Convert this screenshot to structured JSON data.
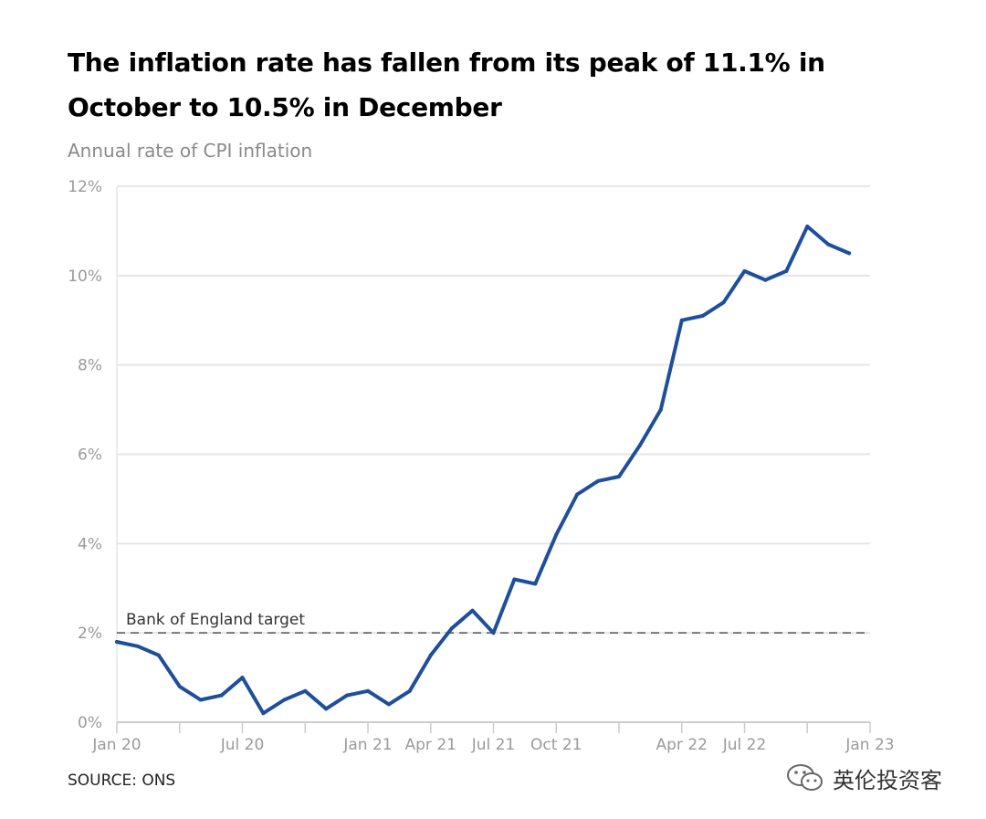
{
  "chart_data": {
    "type": "line",
    "title": "The inflation rate has fallen from its peak of 11.1% in October to 10.5% in December",
    "subtitle": "Annual rate of CPI inflation",
    "source": "SOURCE: ONS",
    "xlabel": "",
    "ylabel": "",
    "ylim": [
      0,
      12
    ],
    "y_ticks": [
      0,
      2,
      4,
      6,
      8,
      10,
      12
    ],
    "y_tick_labels": [
      "0%",
      "2%",
      "4%",
      "6%",
      "8%",
      "10%",
      "12%"
    ],
    "x_tick_dates": [
      "2020-01",
      "2020-04",
      "2020-07",
      "2020-10",
      "2021-01",
      "2021-04",
      "2021-07",
      "2021-10",
      "2022-01",
      "2022-04",
      "2022-07",
      "2022-10",
      "2023-01"
    ],
    "x_tick_labels": [
      "Jan 20",
      "",
      "Jul 20",
      "",
      "Jan 21",
      "Apr 21",
      "Jul 21",
      "Oct 21",
      "",
      "Apr 22",
      "Jul 22",
      "",
      "Jan 23"
    ],
    "grid": true,
    "series": [
      {
        "color": "#1f4f9a",
        "x": [
          "2020-01",
          "2020-02",
          "2020-03",
          "2020-04",
          "2020-05",
          "2020-06",
          "2020-07",
          "2020-08",
          "2020-09",
          "2020-10",
          "2020-11",
          "2020-12",
          "2021-01",
          "2021-02",
          "2021-03",
          "2021-04",
          "2021-05",
          "2021-06",
          "2021-07",
          "2021-08",
          "2021-09",
          "2021-10",
          "2021-11",
          "2021-12",
          "2022-01",
          "2022-02",
          "2022-03",
          "2022-04",
          "2022-05",
          "2022-06",
          "2022-07",
          "2022-08",
          "2022-09",
          "2022-10",
          "2022-11",
          "2022-12"
        ],
        "values": [
          1.8,
          1.7,
          1.5,
          0.8,
          0.5,
          0.6,
          1.0,
          0.2,
          0.5,
          0.7,
          0.3,
          0.6,
          0.7,
          0.4,
          0.7,
          1.5,
          2.1,
          2.5,
          2.0,
          3.2,
          3.1,
          4.2,
          5.1,
          5.4,
          5.5,
          6.2,
          7.0,
          9.0,
          9.1,
          9.4,
          10.1,
          9.9,
          10.1,
          11.1,
          10.7,
          10.5
        ]
      }
    ],
    "reference_line": {
      "value": 2,
      "label": "Bank of England target",
      "color": "#555555"
    },
    "colors": {
      "grid": "#e6e6e6",
      "axis": "#cccccc",
      "tick_text": "#9a9a9a"
    }
  },
  "watermark": {
    "icon": "wechat-icon",
    "text": "英伦投资客"
  }
}
